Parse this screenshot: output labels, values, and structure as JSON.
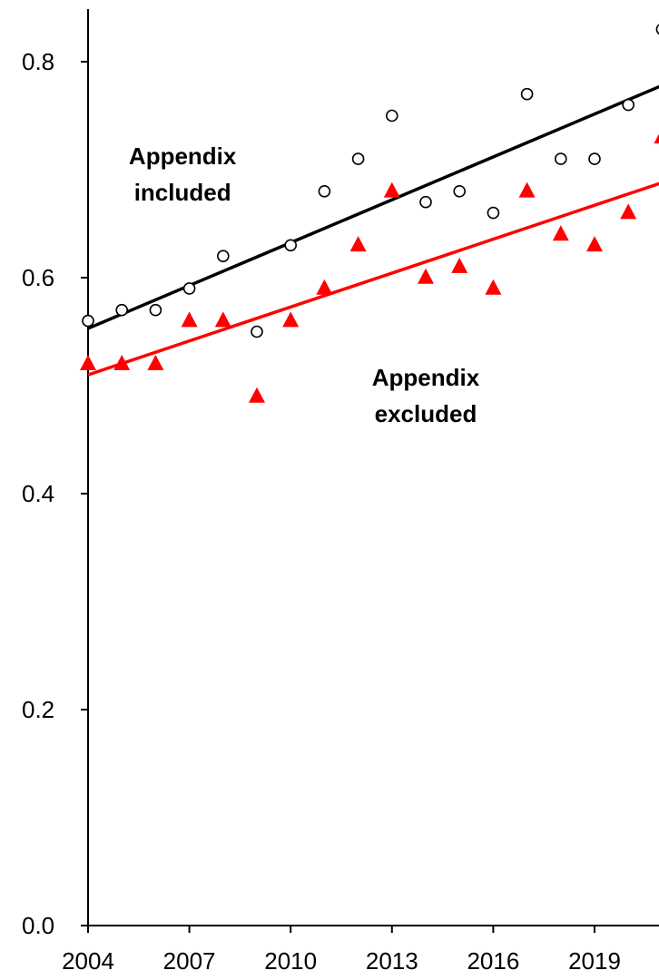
{
  "chart_data": {
    "type": "scatter",
    "xlim": [
      2004,
      2021
    ],
    "ylim": [
      0,
      0.85
    ],
    "x_ticks": [
      2004,
      2007,
      2010,
      2013,
      2016,
      2019
    ],
    "x_tick_labels": [
      "2004",
      "2007",
      "2010",
      "2013",
      "2016",
      "2019"
    ],
    "y_ticks": [
      0.0,
      0.2,
      0.4,
      0.6,
      0.8
    ],
    "y_tick_labels": [
      "0.0",
      "0.2",
      "0.4",
      "0.6",
      "0.8"
    ],
    "grid": false,
    "series": [
      {
        "name": "Appendix included",
        "marker": "open-circle",
        "color": "#000000",
        "x": [
          2004,
          2005,
          2006,
          2007,
          2008,
          2009,
          2010,
          2011,
          2012,
          2013,
          2014,
          2015,
          2016,
          2017,
          2018,
          2019,
          2020,
          2021
        ],
        "y": [
          0.56,
          0.57,
          0.57,
          0.59,
          0.62,
          0.55,
          0.63,
          0.68,
          0.71,
          0.75,
          0.67,
          0.68,
          0.66,
          0.77,
          0.71,
          0.71,
          0.76,
          0.83
        ],
        "trend": {
          "x": [
            2004,
            2021
          ],
          "y": [
            0.553,
            0.778
          ]
        }
      },
      {
        "name": "Appendix excluded",
        "marker": "filled-triangle",
        "color": "#ff0000",
        "x": [
          2004,
          2005,
          2006,
          2007,
          2008,
          2009,
          2010,
          2011,
          2012,
          2013,
          2014,
          2015,
          2016,
          2017,
          2018,
          2019,
          2020,
          2021
        ],
        "y": [
          0.52,
          0.52,
          0.52,
          0.56,
          0.56,
          0.49,
          0.56,
          0.59,
          0.63,
          0.68,
          0.6,
          0.61,
          0.59,
          0.68,
          0.64,
          0.63,
          0.66,
          0.73
        ],
        "trend": {
          "x": [
            2004,
            2021
          ],
          "y": [
            0.51,
            0.688
          ]
        }
      }
    ],
    "annotations": [
      {
        "text": [
          "Appendix",
          "included"
        ],
        "x": 2006.8,
        "y": 0.705
      },
      {
        "text": [
          "Appendix",
          "excluded"
        ],
        "x": 2014.0,
        "y": 0.5
      }
    ]
  }
}
